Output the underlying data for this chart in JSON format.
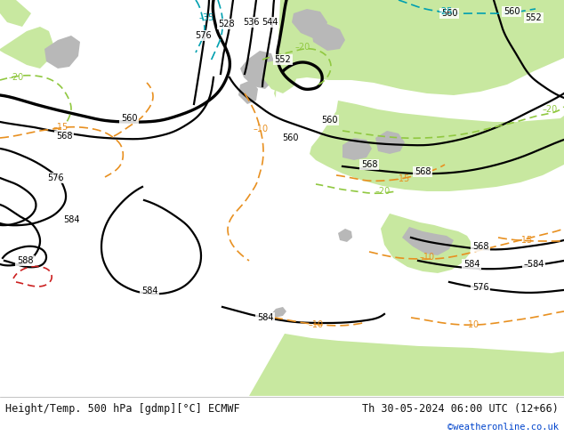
{
  "title_left": "Height/Temp. 500 hPa [gdmp][°C] ECMWF",
  "title_right": "Th 30-05-2024 06:00 UTC (12+66)",
  "credit": "©weatheronline.co.uk",
  "bg_ocean": "#e8e8e8",
  "bg_land_green": "#c8e8a0",
  "bg_land_gray": "#b8b8b8",
  "black": "#000000",
  "orange": "#e89020",
  "lime": "#90c840",
  "cyan": "#00a0b0",
  "red": "#cc2020",
  "fig_width": 6.34,
  "fig_height": 4.9,
  "dpi": 100
}
